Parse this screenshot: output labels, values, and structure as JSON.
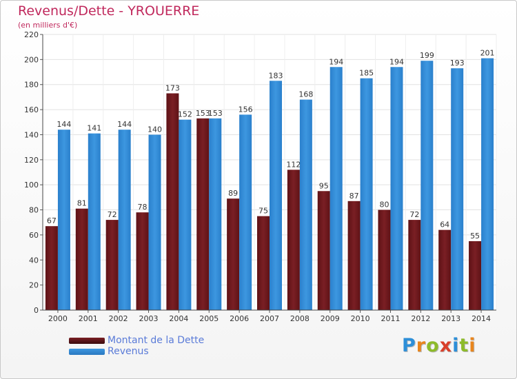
{
  "title": "Revenus/Dette - YROUERRE",
  "subtitle": "(en milliers d'€)",
  "chart_data": {
    "type": "bar",
    "title": "Revenus/Dette - YROUERRE",
    "subtitle": "(en milliers d'€)",
    "xlabel": "",
    "ylabel": "",
    "ylim": [
      0,
      220
    ],
    "yticks": [
      0,
      20,
      40,
      60,
      80,
      100,
      120,
      140,
      160,
      180,
      200,
      220
    ],
    "grid": true,
    "categories": [
      "2000",
      "2001",
      "2002",
      "2003",
      "2004",
      "2005",
      "2006",
      "2007",
      "2008",
      "2009",
      "2010",
      "2011",
      "2012",
      "2013",
      "2014"
    ],
    "series": [
      {
        "name": "Montant de la Dette",
        "color": "#7a1f24",
        "values": [
          67,
          81,
          72,
          78,
          173,
          153,
          89,
          75,
          112,
          95,
          87,
          80,
          72,
          64,
          55
        ]
      },
      {
        "name": "Revenus",
        "color": "#3d97e0",
        "values": [
          144,
          141,
          144,
          140,
          152,
          153,
          156,
          183,
          168,
          194,
          185,
          194,
          199,
          193,
          201
        ]
      }
    ],
    "legend_position": "bottom-left"
  },
  "legend": {
    "items": [
      {
        "label": "Montant de la Dette",
        "color": "#7a1f24"
      },
      {
        "label": "Revenus",
        "color": "#3d97e0"
      }
    ]
  },
  "brand": {
    "letters": [
      "P",
      "r",
      "o",
      "x",
      "i",
      "t",
      "i"
    ],
    "colors": [
      "#2d8fd8",
      "#e8851d",
      "#8dbb2a",
      "#d93f2a",
      "#2d8fd8",
      "#8dbb2a",
      "#e8851d"
    ]
  }
}
